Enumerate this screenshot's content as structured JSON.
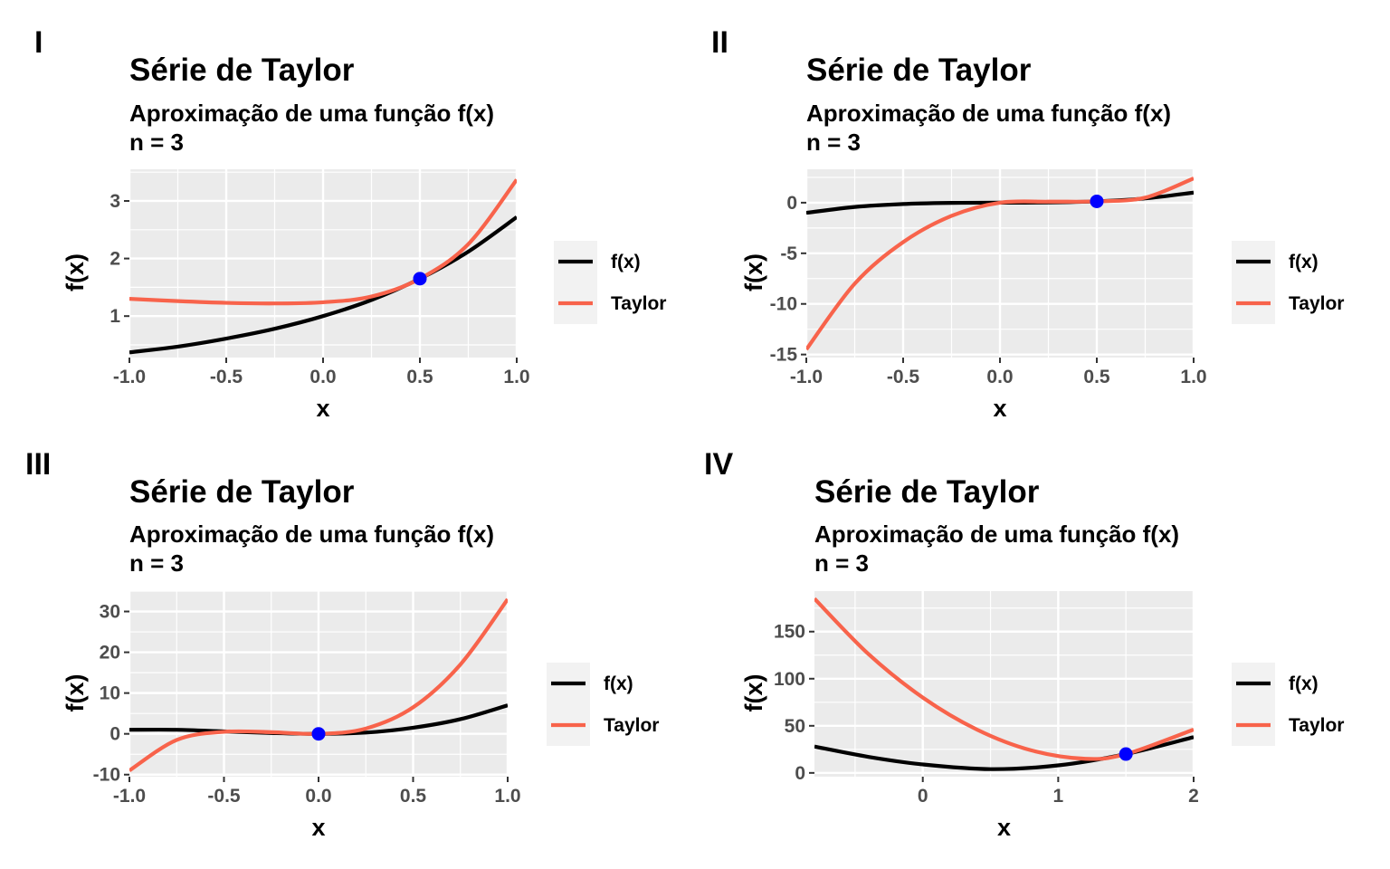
{
  "chart_data": [
    {
      "panel": "I",
      "type": "line",
      "title": "Série de Taylor",
      "subtitle": [
        "Aproximação de uma função f(x)",
        "n = 3"
      ],
      "xlabel": "x",
      "ylabel": "f(x)",
      "xlim": [
        -1.0,
        1.0
      ],
      "ylim": [
        0.28,
        3.55
      ],
      "xticks": [
        -1.0,
        -0.5,
        0.0,
        0.5,
        1.0
      ],
      "xtick_labels": [
        "-1.0",
        "-0.5",
        "0.0",
        "0.5",
        "1.0"
      ],
      "yticks": [
        1,
        2,
        3
      ],
      "ytick_labels": [
        "1",
        "2",
        "3"
      ],
      "grid": true,
      "legend_position": "right",
      "legend": [
        "f(x)",
        "Taylor"
      ],
      "series": [
        {
          "name": "f(x)",
          "color": "#000000",
          "x": [
            -1.0,
            -0.75,
            -0.5,
            -0.25,
            0.0,
            0.25,
            0.5,
            0.75,
            1.0
          ],
          "y": [
            0.37,
            0.47,
            0.61,
            0.78,
            1.0,
            1.28,
            1.65,
            2.12,
            2.72
          ]
        },
        {
          "name": "Taylor",
          "color": "#F8634B",
          "x": [
            -1.0,
            -0.75,
            -0.5,
            -0.25,
            0.0,
            0.25,
            0.5,
            0.75,
            1.0
          ],
          "y": [
            1.3,
            1.26,
            1.23,
            1.22,
            1.24,
            1.34,
            1.65,
            2.25,
            3.37
          ]
        }
      ],
      "point": {
        "x": 0.5,
        "y": 1.65,
        "color": "#0000FF"
      }
    },
    {
      "panel": "II",
      "type": "line",
      "title": "Série de Taylor",
      "subtitle": [
        "Aproximação de uma função f(x)",
        "n = 3"
      ],
      "xlabel": "x",
      "ylabel": "f(x)",
      "xlim": [
        -1.0,
        1.0
      ],
      "ylim": [
        -15.3,
        3.3
      ],
      "xticks": [
        -1.0,
        -0.5,
        0.0,
        0.5,
        1.0
      ],
      "xtick_labels": [
        "-1.0",
        "-0.5",
        "0.0",
        "0.5",
        "1.0"
      ],
      "yticks": [
        -15,
        -10,
        -5,
        0
      ],
      "ytick_labels": [
        "-15",
        "-10",
        "-5",
        "0"
      ],
      "grid": true,
      "legend_position": "right",
      "legend": [
        "f(x)",
        "Taylor"
      ],
      "series": [
        {
          "name": "f(x)",
          "color": "#000000",
          "x": [
            -1.0,
            -0.75,
            -0.5,
            -0.25,
            0.0,
            0.25,
            0.5,
            0.75,
            1.0
          ],
          "y": [
            -1.0,
            -0.42,
            -0.13,
            -0.02,
            0.0,
            0.02,
            0.13,
            0.42,
            1.0
          ]
        },
        {
          "name": "Taylor",
          "color": "#F8634B",
          "x": [
            -1.0,
            -0.75,
            -0.5,
            -0.25,
            0.0,
            0.25,
            0.5,
            0.75,
            1.0
          ],
          "y": [
            -14.5,
            -8.0,
            -3.9,
            -1.3,
            0.0,
            0.1,
            0.13,
            0.5,
            2.4
          ]
        }
      ],
      "point": {
        "x": 0.5,
        "y": 0.13,
        "color": "#0000FF"
      }
    },
    {
      "panel": "III",
      "type": "line",
      "title": "Série de Taylor",
      "subtitle": [
        "Aproximação de uma função f(x)",
        "n = 3"
      ],
      "xlabel": "x",
      "ylabel": "f(x)",
      "xlim": [
        -1.0,
        1.0
      ],
      "ylim": [
        -10.5,
        35.0
      ],
      "xticks": [
        -1.0,
        -0.5,
        0.0,
        0.5,
        1.0
      ],
      "xtick_labels": [
        "-1.0",
        "-0.5",
        "0.0",
        "0.5",
        "1.0"
      ],
      "yticks": [
        -10,
        0,
        10,
        20,
        30
      ],
      "ytick_labels": [
        "-10",
        "0",
        "10",
        "20",
        "30"
      ],
      "grid": true,
      "legend_position": "right",
      "legend": [
        "f(x)",
        "Taylor"
      ],
      "series": [
        {
          "name": "f(x)",
          "color": "#000000",
          "x": [
            -1.0,
            -0.75,
            -0.5,
            -0.25,
            0.0,
            0.25,
            0.5,
            0.75,
            1.0
          ],
          "y": [
            1.0,
            1.0,
            0.6,
            0.2,
            0.0,
            0.3,
            1.5,
            3.6,
            7.0
          ]
        },
        {
          "name": "Taylor",
          "color": "#F8634B",
          "x": [
            -1.0,
            -0.75,
            -0.5,
            -0.25,
            0.0,
            0.25,
            0.5,
            0.75,
            1.0
          ],
          "y": [
            -9.0,
            -1.5,
            0.5,
            0.4,
            0.0,
            1.3,
            6.5,
            17.0,
            33.0
          ]
        }
      ],
      "point": {
        "x": 0.0,
        "y": 0.0,
        "color": "#0000FF"
      }
    },
    {
      "panel": "IV",
      "type": "line",
      "title": "Série de Taylor",
      "subtitle": [
        "Aproximação de uma função f(x)",
        "n = 3"
      ],
      "xlabel": "x",
      "ylabel": "f(x)",
      "xlim": [
        -0.8,
        2.0
      ],
      "ylim": [
        -4,
        193
      ],
      "xticks": [
        0,
        1,
        2
      ],
      "xtick_labels": [
        "0",
        "1",
        "2"
      ],
      "yticks": [
        0,
        50,
        100,
        150
      ],
      "ytick_labels": [
        "0",
        "50",
        "100",
        "150"
      ],
      "grid": true,
      "legend_position": "right",
      "legend": [
        "f(x)",
        "Taylor"
      ],
      "series": [
        {
          "name": "f(x)",
          "color": "#000000",
          "x": [
            -0.8,
            -0.4,
            0.0,
            0.5,
            1.0,
            1.5,
            2.0
          ],
          "y": [
            28,
            17,
            9,
            4,
            8,
            20,
            38
          ]
        },
        {
          "name": "Taylor",
          "color": "#F8634B",
          "x": [
            -0.8,
            -0.4,
            0.0,
            0.4,
            0.8,
            1.2,
            1.5,
            2.0
          ],
          "y": [
            185,
            126,
            80,
            46,
            24,
            15,
            20,
            46
          ]
        }
      ],
      "point": {
        "x": 1.5,
        "y": 20,
        "color": "#0000FF"
      }
    }
  ]
}
